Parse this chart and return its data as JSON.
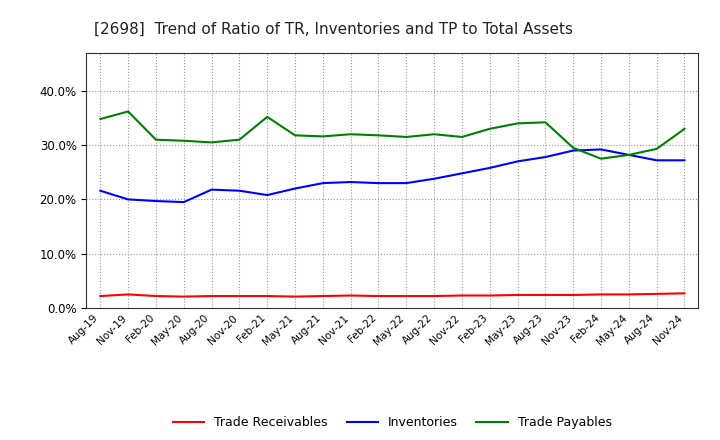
{
  "title": "[2698]  Trend of Ratio of TR, Inventories and TP to Total Assets",
  "x_labels": [
    "Aug-19",
    "Nov-19",
    "Feb-20",
    "May-20",
    "Aug-20",
    "Nov-20",
    "Feb-21",
    "May-21",
    "Aug-21",
    "Nov-21",
    "Feb-22",
    "May-22",
    "Aug-22",
    "Nov-22",
    "Feb-23",
    "May-23",
    "Aug-23",
    "Nov-23",
    "Feb-24",
    "May-24",
    "Aug-24",
    "Nov-24"
  ],
  "trade_receivables": [
    0.022,
    0.025,
    0.022,
    0.021,
    0.022,
    0.022,
    0.022,
    0.021,
    0.022,
    0.023,
    0.022,
    0.022,
    0.022,
    0.023,
    0.023,
    0.024,
    0.024,
    0.024,
    0.025,
    0.025,
    0.026,
    0.027
  ],
  "inventories": [
    0.216,
    0.2,
    0.197,
    0.195,
    0.218,
    0.216,
    0.208,
    0.22,
    0.23,
    0.232,
    0.23,
    0.23,
    0.238,
    0.248,
    0.258,
    0.27,
    0.278,
    0.29,
    0.292,
    0.282,
    0.272,
    0.272
  ],
  "trade_payables": [
    0.348,
    0.362,
    0.31,
    0.308,
    0.305,
    0.31,
    0.352,
    0.318,
    0.316,
    0.32,
    0.318,
    0.315,
    0.32,
    0.315,
    0.33,
    0.34,
    0.342,
    0.295,
    0.275,
    0.282,
    0.293,
    0.33
  ],
  "tr_color": "#ff0000",
  "inv_color": "#0000ff",
  "tp_color": "#008000",
  "ylim": [
    0.0,
    0.47
  ],
  "yticks": [
    0.0,
    0.1,
    0.2,
    0.3,
    0.4
  ],
  "background_color": "#ffffff",
  "grid_color": "#999999",
  "legend_labels": [
    "Trade Receivables",
    "Inventories",
    "Trade Payables"
  ]
}
